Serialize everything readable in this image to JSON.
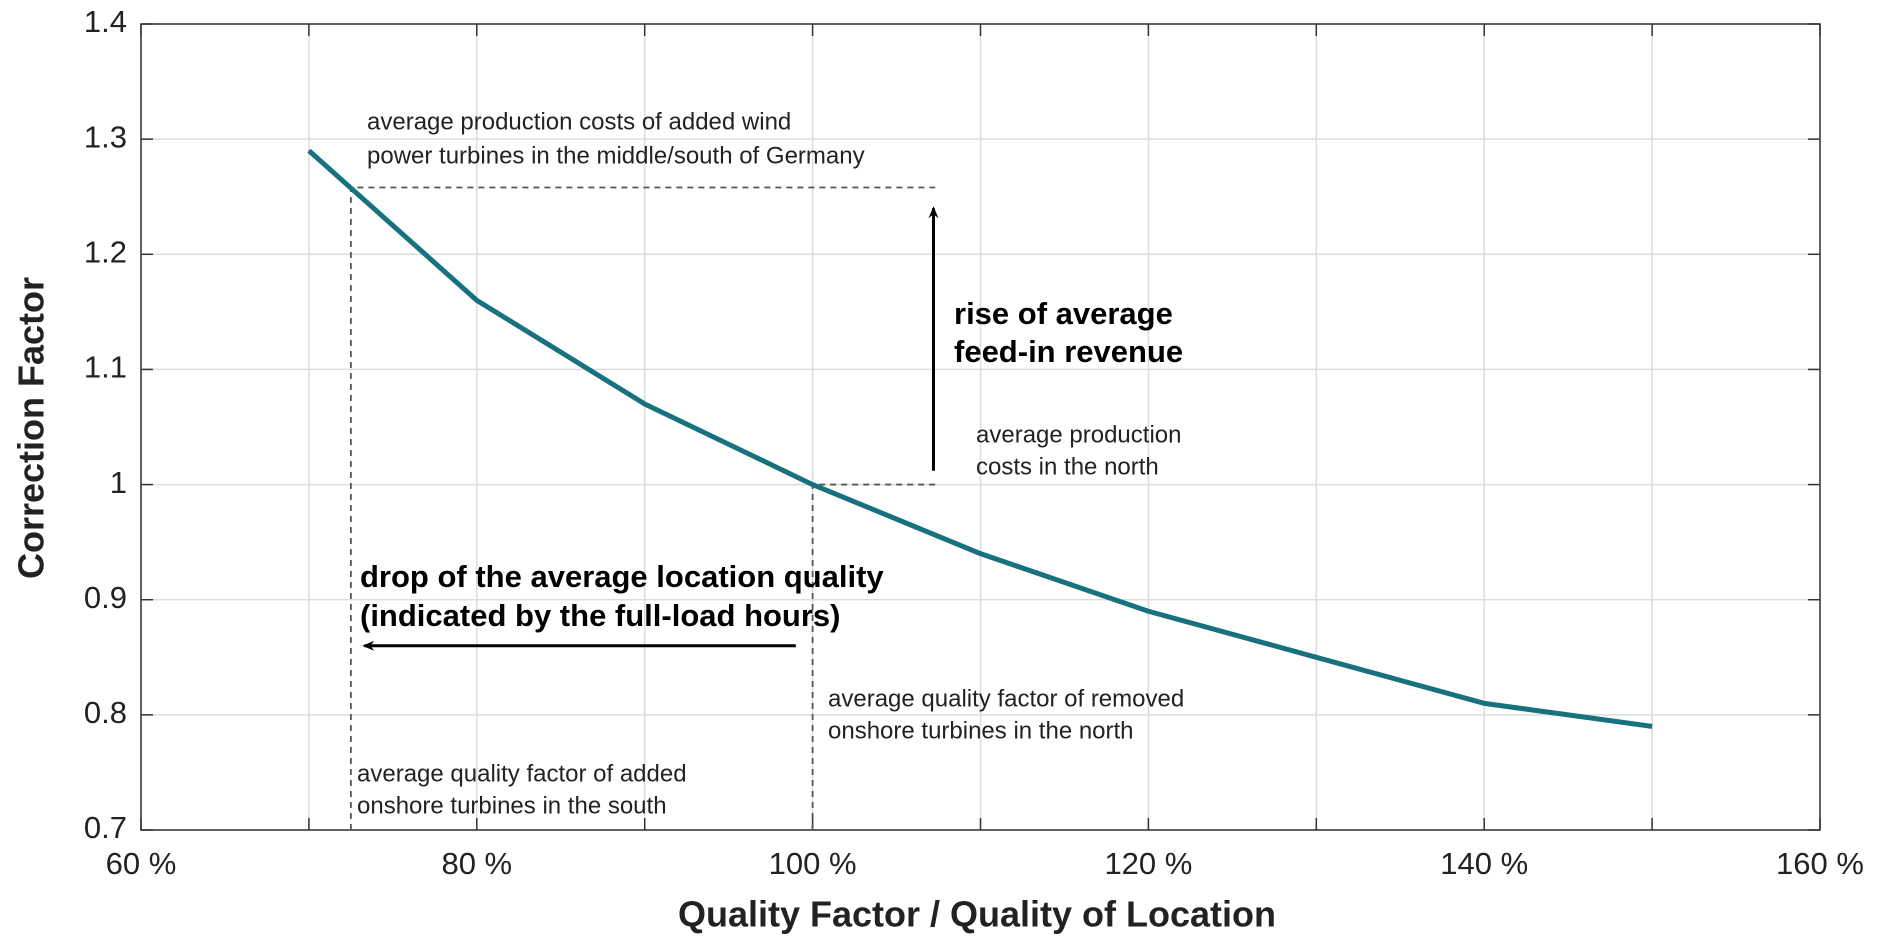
{
  "chart_data": {
    "type": "line",
    "x_label": "Quality Factor / Quality of Location",
    "y_label": "Correction Factor",
    "x": [
      70,
      80,
      90,
      100,
      110,
      120,
      130,
      140,
      150
    ],
    "series": [
      {
        "color": "#17717e",
        "values": [
          1.29,
          1.16,
          1.07,
          1.0,
          0.94,
          0.89,
          0.85,
          0.81,
          0.79
        ]
      }
    ],
    "xlim": [
      60,
      160
    ],
    "ylim": [
      0.7,
      1.4
    ],
    "xticks": [
      {
        "value": 60,
        "label": "60 %"
      },
      {
        "value": 80,
        "label": "80 %"
      },
      {
        "value": 100,
        "label": "100 %"
      },
      {
        "value": 120,
        "label": "120 %"
      },
      {
        "value": 140,
        "label": "140 %"
      },
      {
        "value": 160,
        "label": "160 %"
      }
    ],
    "xminorticks": [
      70,
      90,
      110,
      130,
      150
    ],
    "yticks": [
      0.7,
      0.8,
      0.9,
      1,
      1.1,
      1.2,
      1.3,
      1.4
    ],
    "grid": true,
    "guides": [
      {
        "x": [
          72.5,
          72.5,
          107.3
        ],
        "y": [
          0.7,
          1.258,
          1.258
        ]
      },
      {
        "x": [
          100,
          100,
          107.3
        ],
        "y": [
          0.7,
          1.0,
          1.0
        ]
      }
    ],
    "arrows": [
      {
        "x": [
          107.2,
          107.2
        ],
        "y": [
          1.012,
          1.24
        ]
      },
      {
        "x": [
          99,
          73.3
        ],
        "y": [
          0.86,
          0.86
        ]
      }
    ],
    "annotations": [
      {
        "lines": [
          "average production costs of added wind",
          "power turbines in the middle/south of Germany"
        ]
      },
      {
        "lines": [
          "rise of average",
          "feed-in revenue"
        ],
        "bold": true
      },
      {
        "lines": [
          "average production",
          "costs in the north"
        ]
      },
      {
        "lines": [
          "drop of the average location quality",
          "(indicated by the full-load hours)"
        ],
        "bold": true
      },
      {
        "lines": [
          "average quality factor of removed",
          "onshore turbines in the north"
        ]
      },
      {
        "lines": [
          "average quality factor of added",
          "onshore turbines in the south"
        ]
      }
    ]
  }
}
